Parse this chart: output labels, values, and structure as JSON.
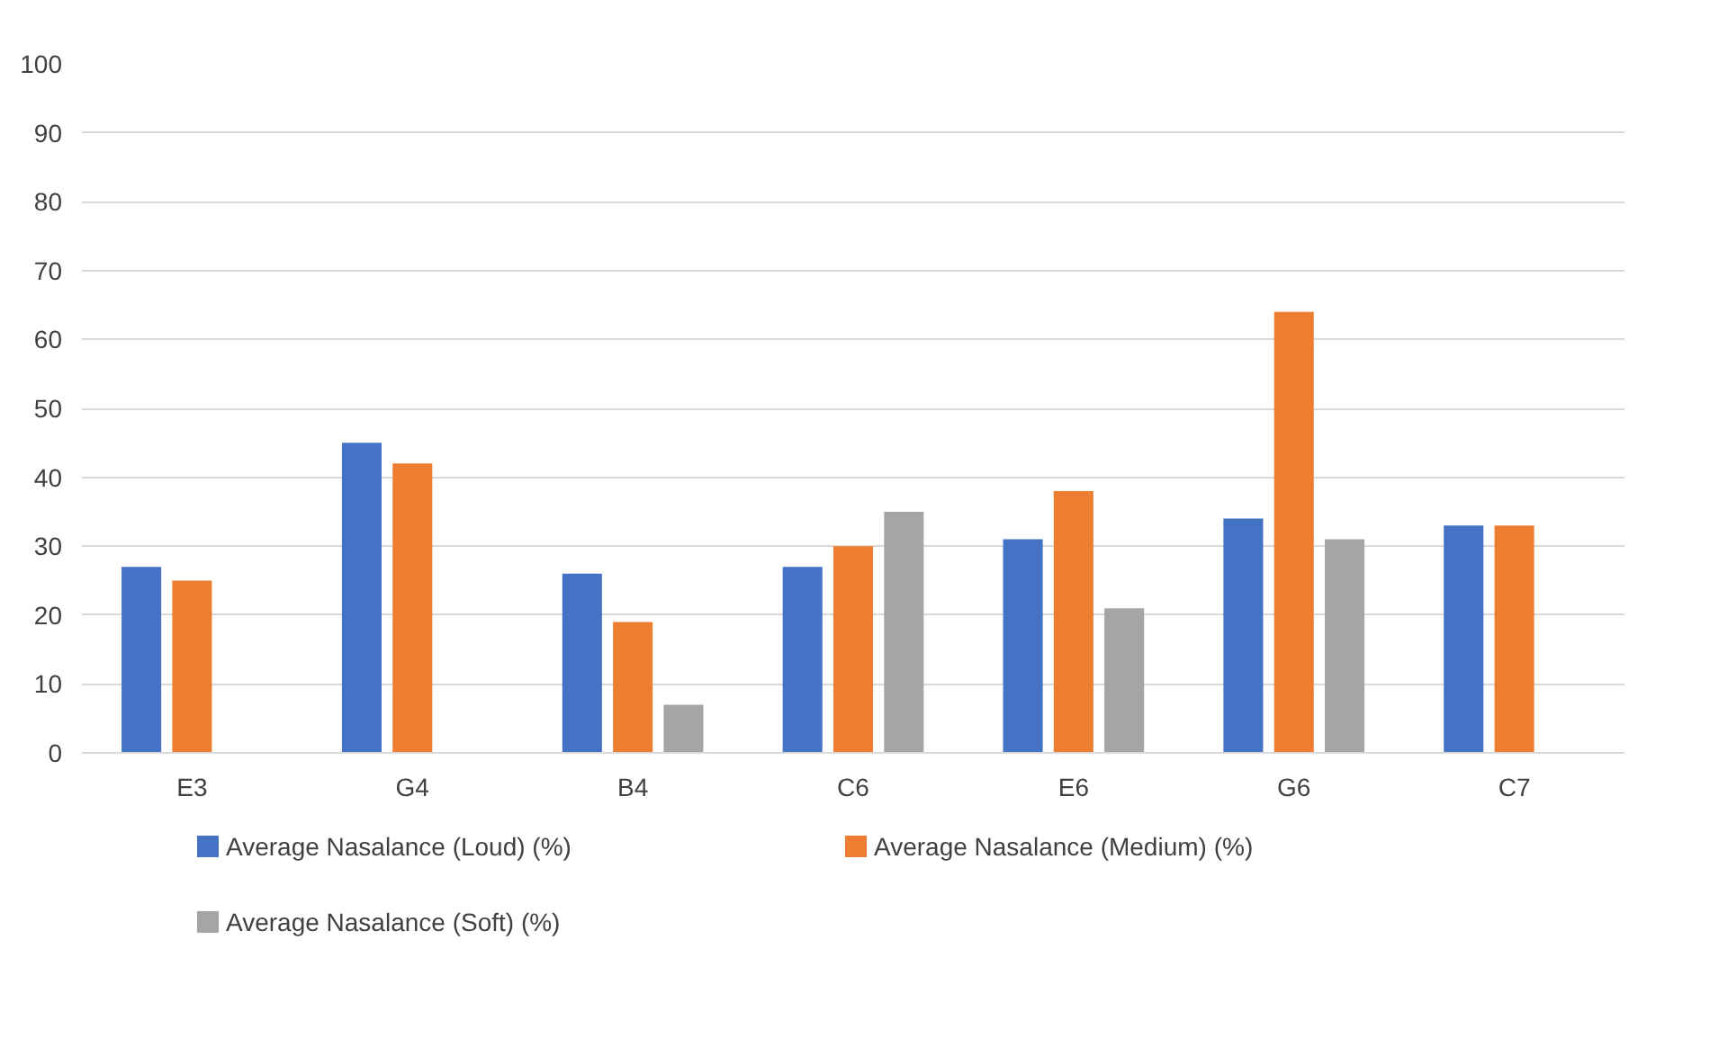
{
  "chart_data": {
    "type": "bar",
    "categories": [
      "E3",
      "G4",
      "B4",
      "C6",
      "E6",
      "G6",
      "C7"
    ],
    "series": [
      {
        "name": "Average Nasalance (Loud) (%)",
        "color": "#4472c4",
        "values": [
          27,
          45,
          26,
          27,
          31,
          34,
          33
        ]
      },
      {
        "name": "Average Nasalance (Medium) (%)",
        "color": "#ed7d31",
        "values": [
          25,
          42,
          19,
          30,
          38,
          64,
          33
        ]
      },
      {
        "name": "Average Nasalance (Soft) (%)",
        "color": "#a5a5a5",
        "values": [
          null,
          null,
          7,
          35,
          21,
          31,
          null
        ]
      }
    ],
    "ylim": [
      0,
      100
    ],
    "yticks": [
      0,
      10,
      20,
      30,
      40,
      50,
      60,
      70,
      80,
      90,
      100
    ],
    "grid": "y",
    "legend": "bottom"
  }
}
